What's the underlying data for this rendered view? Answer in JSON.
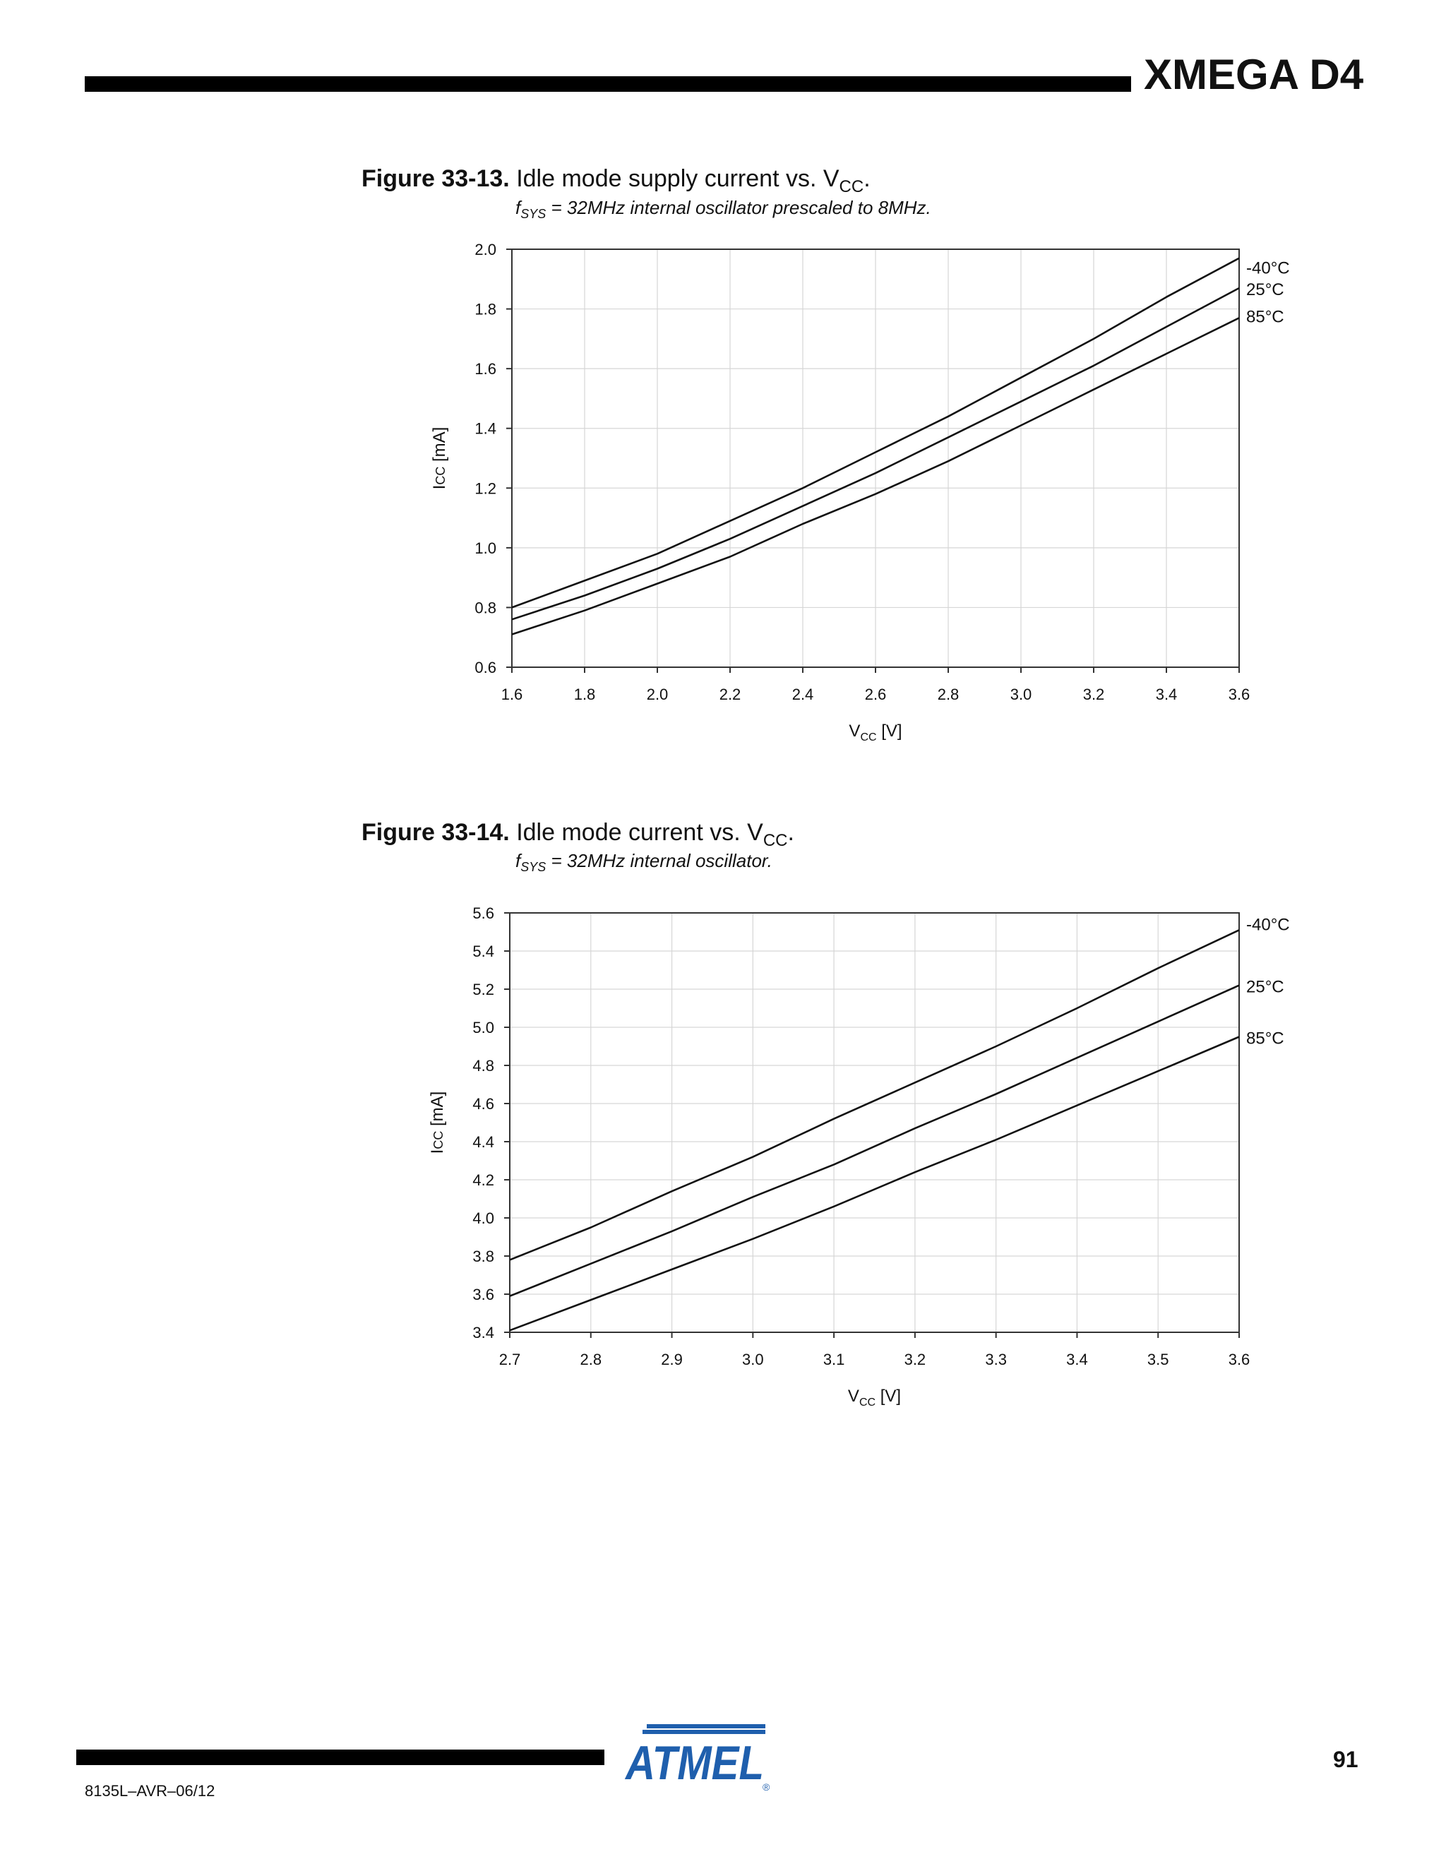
{
  "header": {
    "title": "XMEGA D4"
  },
  "footer": {
    "doc_code": "8135L–AVR–06/12",
    "page_number": "91",
    "logo_text": "ATMEL"
  },
  "figures": [
    {
      "label": "Figure 33-13.",
      "title_text": "Idle mode supply current vs. V",
      "title_sub": "CC",
      "title_end": ".",
      "subtitle_f": "f",
      "subtitle_sub": "SYS",
      "subtitle_text": " = 32MHz internal oscillator prescaled to 8MHz."
    },
    {
      "label": "Figure 33-14.",
      "title_text": "Idle mode current vs. V",
      "title_sub": "CC",
      "title_end": ".",
      "subtitle_f": "f",
      "subtitle_sub": "SYS",
      "subtitle_text": " = 32MHz internal oscillator."
    }
  ],
  "chart_data": [
    {
      "type": "line",
      "title": "Idle mode supply current vs. VCC.",
      "xlabel": "V",
      "xlabel_sub": "CC",
      "xlabel_unit": " [V]",
      "ylabel": "I",
      "ylabel_sub": "CC",
      "ylabel_unit": " [mA]",
      "xlim": [
        1.6,
        3.6
      ],
      "ylim": [
        0.6,
        2.0
      ],
      "xticks": [
        "1.6",
        "1.8",
        "2.0",
        "2.2",
        "2.4",
        "2.6",
        "2.8",
        "3.0",
        "3.2",
        "3.4",
        "3.6"
      ],
      "yticks": [
        "0.6",
        "0.8",
        "1.0",
        "1.2",
        "1.4",
        "1.6",
        "1.8",
        "2.0"
      ],
      "grid": true,
      "legend": "right",
      "x": [
        1.6,
        1.8,
        2.0,
        2.2,
        2.4,
        2.6,
        2.8,
        3.0,
        3.2,
        3.4,
        3.6
      ],
      "series": [
        {
          "name": "-40°C",
          "values": [
            0.8,
            0.89,
            0.98,
            1.09,
            1.2,
            1.32,
            1.44,
            1.57,
            1.7,
            1.84,
            1.97
          ]
        },
        {
          "name": "25°C",
          "values": [
            0.76,
            0.84,
            0.93,
            1.03,
            1.14,
            1.25,
            1.37,
            1.49,
            1.61,
            1.74,
            1.87
          ]
        },
        {
          "name": "85°C",
          "values": [
            0.71,
            0.79,
            0.88,
            0.97,
            1.08,
            1.18,
            1.29,
            1.41,
            1.53,
            1.65,
            1.77
          ]
        }
      ]
    },
    {
      "type": "line",
      "title": "Idle mode current vs. VCC.",
      "xlabel": "V",
      "xlabel_sub": "CC",
      "xlabel_unit": " [V]",
      "ylabel": "I",
      "ylabel_sub": "CC",
      "ylabel_unit": " [mA]",
      "xlim": [
        2.7,
        3.6
      ],
      "ylim": [
        3.4,
        5.6
      ],
      "xticks": [
        "2.7",
        "2.8",
        "2.9",
        "3.0",
        "3.1",
        "3.2",
        "3.3",
        "3.4",
        "3.5",
        "3.6"
      ],
      "yticks": [
        "3.4",
        "3.6",
        "3.8",
        "4.0",
        "4.2",
        "4.4",
        "4.6",
        "4.8",
        "5.0",
        "5.2",
        "5.4",
        "5.6"
      ],
      "grid": true,
      "legend": "right",
      "x": [
        2.7,
        2.8,
        2.9,
        3.0,
        3.1,
        3.2,
        3.3,
        3.4,
        3.5,
        3.6
      ],
      "series": [
        {
          "name": "-40°C",
          "values": [
            3.78,
            3.95,
            4.14,
            4.32,
            4.52,
            4.71,
            4.9,
            5.1,
            5.31,
            5.51
          ]
        },
        {
          "name": "25°C",
          "values": [
            3.59,
            3.76,
            3.93,
            4.11,
            4.28,
            4.47,
            4.65,
            4.84,
            5.03,
            5.22
          ]
        },
        {
          "name": "85°C",
          "values": [
            3.41,
            3.57,
            3.73,
            3.89,
            4.06,
            4.24,
            4.41,
            4.59,
            4.77,
            4.95
          ]
        }
      ]
    }
  ]
}
